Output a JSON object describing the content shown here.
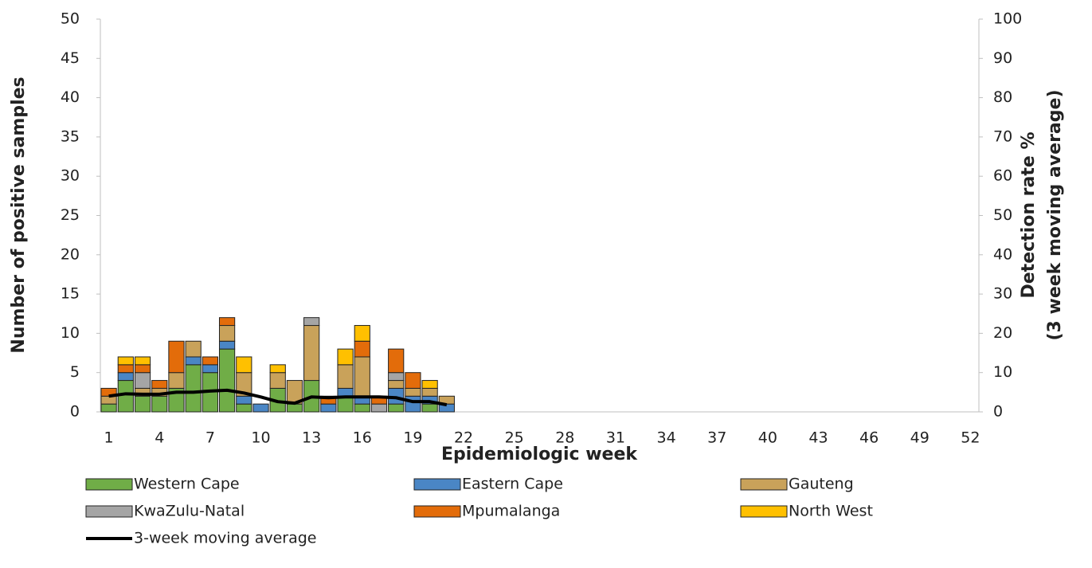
{
  "chart_data": {
    "type": "bar",
    "x_label": "Epidemiologic week",
    "y_label": "Number of positive samples",
    "y2_label": [
      "Detection rate %",
      "(3 week moving average)"
    ],
    "categories": [
      1,
      null,
      null,
      4,
      null,
      null,
      7,
      null,
      null,
      10,
      null,
      null,
      13,
      null,
      null,
      16,
      null,
      null,
      19,
      null,
      null,
      22,
      null,
      null,
      25,
      null,
      null,
      28,
      null,
      null,
      31,
      null,
      null,
      34,
      null,
      null,
      37,
      null,
      null,
      40,
      null,
      null,
      43,
      null,
      null,
      46,
      null,
      null,
      49,
      null,
      null,
      52
    ],
    "ylim": [
      0,
      50
    ],
    "yticks": [
      0,
      5,
      10,
      15,
      20,
      25,
      30,
      35,
      40,
      45,
      50
    ],
    "y2lim": [
      0,
      100
    ],
    "y2ticks": [
      0,
      10,
      20,
      30,
      40,
      50,
      60,
      70,
      80,
      90,
      100
    ],
    "grid": false,
    "stacked": true,
    "series": [
      {
        "name": "Western Cape",
        "color": "#70ad47",
        "values": [
          1,
          4,
          2,
          2,
          3,
          6,
          5,
          8,
          1,
          0,
          3,
          1,
          4,
          0,
          2,
          1,
          0,
          1,
          0,
          1,
          0,
          0,
          0,
          0,
          0,
          0,
          0,
          0,
          0,
          0,
          0,
          0,
          0,
          0,
          0,
          0,
          0,
          0,
          0,
          0,
          0,
          0,
          0,
          0,
          0,
          0,
          0,
          0,
          0,
          0,
          0,
          0
        ]
      },
      {
        "name": "Eastern Cape",
        "color": "#4a86c5",
        "values": [
          0,
          1,
          0,
          0,
          0,
          1,
          1,
          1,
          1,
          1,
          0,
          0,
          0,
          1,
          1,
          1,
          0,
          2,
          2,
          1,
          1,
          0,
          0,
          0,
          0,
          0,
          0,
          0,
          0,
          0,
          0,
          0,
          0,
          0,
          0,
          0,
          0,
          0,
          0,
          0,
          0,
          0,
          0,
          0,
          0,
          0,
          0,
          0,
          0,
          0,
          0,
          0
        ]
      },
      {
        "name": "Gauteng",
        "color": "#c9a25a",
        "values": [
          1,
          0,
          1,
          1,
          2,
          2,
          0,
          2,
          3,
          0,
          2,
          3,
          7,
          0,
          3,
          5,
          0,
          1,
          1,
          1,
          1,
          0,
          0,
          0,
          0,
          0,
          0,
          0,
          0,
          0,
          0,
          0,
          0,
          0,
          0,
          0,
          0,
          0,
          0,
          0,
          0,
          0,
          0,
          0,
          0,
          0,
          0,
          0,
          0,
          0,
          0,
          0
        ]
      },
      {
        "name": "KwaZulu-Natal",
        "color": "#a5a5a5",
        "values": [
          0,
          0,
          2,
          0,
          0,
          0,
          0,
          0,
          0,
          0,
          0,
          0,
          1,
          0,
          0,
          0,
          1,
          1,
          0,
          0,
          0,
          0,
          0,
          0,
          0,
          0,
          0,
          0,
          0,
          0,
          0,
          0,
          0,
          0,
          0,
          0,
          0,
          0,
          0,
          0,
          0,
          0,
          0,
          0,
          0,
          0,
          0,
          0,
          0,
          0,
          0,
          0
        ]
      },
      {
        "name": "Mpumalanga",
        "color": "#e36c0a",
        "values": [
          1,
          1,
          1,
          1,
          4,
          0,
          1,
          1,
          0,
          0,
          0,
          0,
          0,
          1,
          0,
          2,
          1,
          3,
          2,
          0,
          0,
          0,
          0,
          0,
          0,
          0,
          0,
          0,
          0,
          0,
          0,
          0,
          0,
          0,
          0,
          0,
          0,
          0,
          0,
          0,
          0,
          0,
          0,
          0,
          0,
          0,
          0,
          0,
          0,
          0,
          0,
          0
        ]
      },
      {
        "name": "North West",
        "color": "#ffc000",
        "values": [
          0,
          1,
          1,
          0,
          0,
          0,
          0,
          0,
          2,
          0,
          1,
          0,
          0,
          0,
          2,
          2,
          0,
          0,
          0,
          1,
          0,
          0,
          0,
          0,
          0,
          0,
          0,
          0,
          0,
          0,
          0,
          0,
          0,
          0,
          0,
          0,
          0,
          0,
          0,
          0,
          0,
          0,
          0,
          0,
          0,
          0,
          0,
          0,
          0,
          0,
          0,
          0
        ]
      },
      {
        "name": "3-week moving average",
        "color": "#000000",
        "type": "line",
        "axis": "y2",
        "values": [
          4,
          4.6,
          4.5,
          4.5,
          5,
          5,
          5.3,
          5.5,
          4.8,
          3.8,
          2.6,
          2.2,
          3.8,
          3.6,
          3.8,
          3.8,
          3.8,
          3.6,
          2.6,
          2.6,
          1.8,
          null,
          null,
          null,
          null,
          null,
          null,
          null,
          null,
          null,
          null,
          null,
          null,
          null,
          null,
          null,
          null,
          null,
          null,
          null,
          null,
          null,
          null,
          null,
          null,
          null,
          null,
          null,
          null,
          null,
          null,
          null
        ]
      }
    ]
  }
}
